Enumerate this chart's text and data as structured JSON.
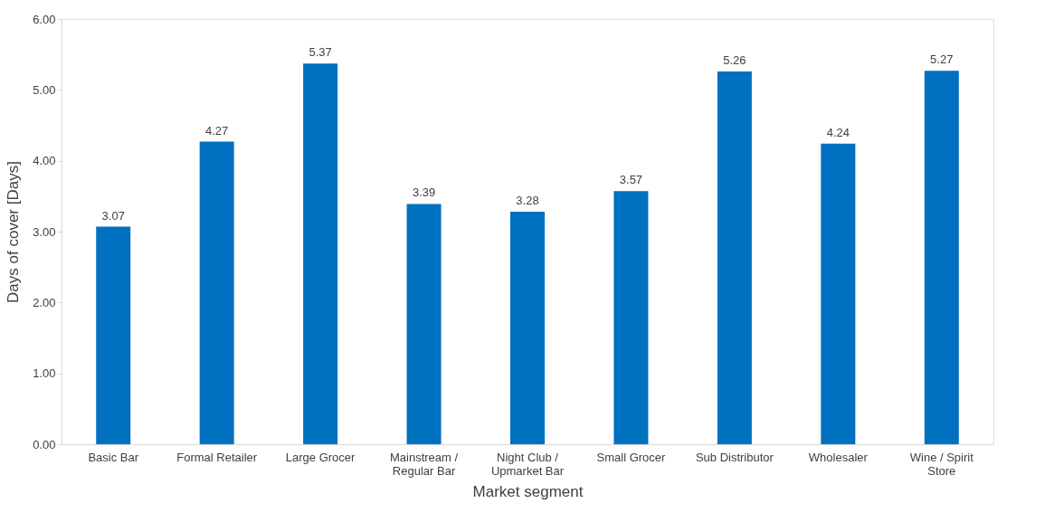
{
  "chart_data": {
    "type": "bar",
    "xlabel": "Market segment",
    "ylabel": "Days of cover [Days]",
    "categories": [
      "Basic Bar",
      "Formal Retailer",
      "Large Grocer",
      "Mainstream / Regular Bar",
      "Night Club / Upmarket Bar",
      "Small Grocer",
      "Sub Distributor",
      "Wholesaler",
      "Wine / Spirit Store"
    ],
    "values": [
      3.07,
      4.27,
      5.37,
      3.39,
      3.28,
      3.57,
      5.26,
      4.24,
      5.27
    ],
    "color": "#0070c0",
    "ylim": [
      0,
      6
    ],
    "yticks": [
      {
        "value": 0,
        "label": "0.00"
      },
      {
        "value": 1,
        "label": "1.00"
      },
      {
        "value": 2,
        "label": "2.00"
      },
      {
        "value": 3,
        "label": "3.00"
      },
      {
        "value": 4,
        "label": "4.00"
      },
      {
        "value": 5,
        "label": "5.00"
      },
      {
        "value": 6,
        "label": "6.00"
      }
    ],
    "data_labels": true,
    "grid": false
  }
}
